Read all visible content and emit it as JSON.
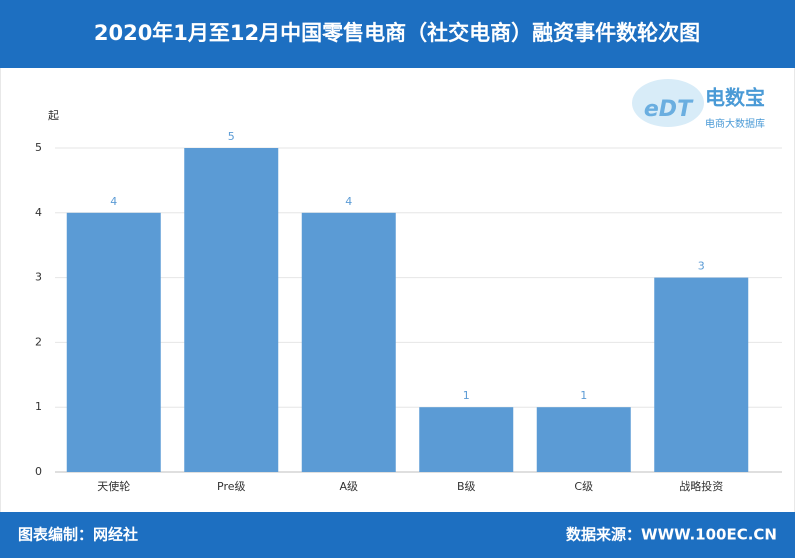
{
  "chart_data": {
    "type": "bar",
    "title": "2020年1月至12月中国零售电商（社交电商）融资事件数轮次图",
    "y_label": "起",
    "categories": [
      "天使轮",
      "Pre级",
      "A级",
      "B级",
      "C级",
      "战略投资"
    ],
    "values": [
      4,
      5,
      4,
      1,
      1,
      3
    ],
    "color": "#5b9bd5",
    "ylim": [
      0,
      5
    ],
    "yticks": [
      0,
      1,
      2,
      3,
      4,
      5
    ],
    "grid": true,
    "logo_mark": "eDT",
    "logo_name": "电数宝",
    "logo_subtitle": "电商大数据库",
    "credit": "图表编制：网经社",
    "source": "数据来源：WWW.100EC.CN"
  }
}
